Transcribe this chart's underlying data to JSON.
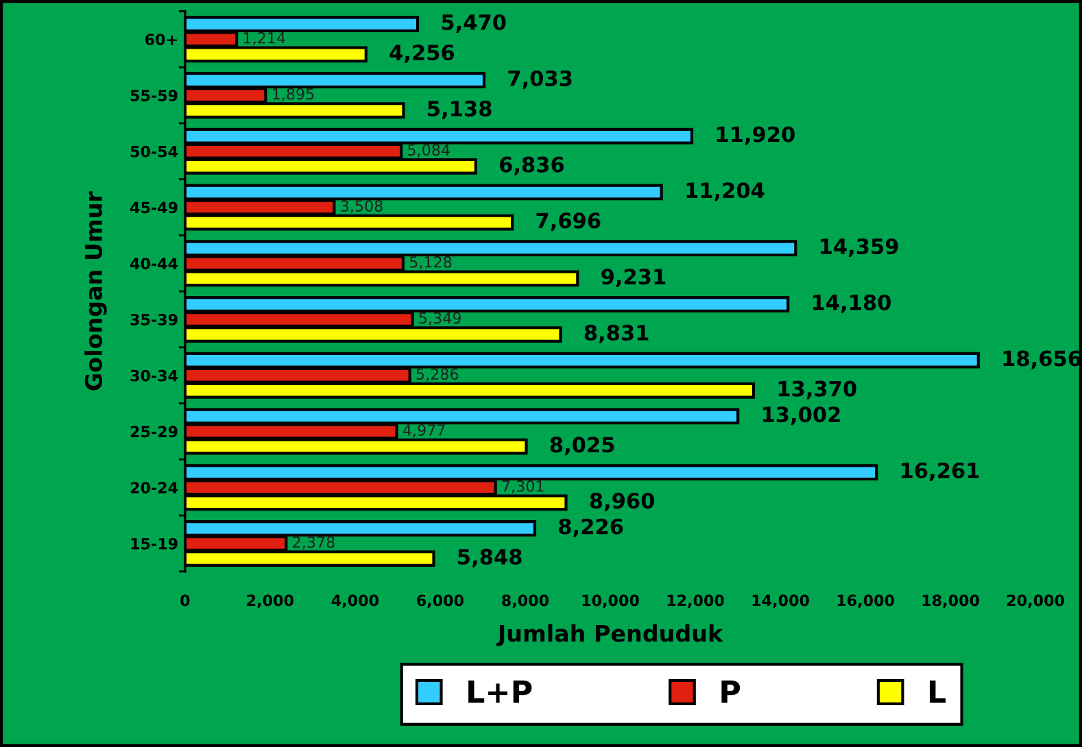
{
  "chart_data": {
    "type": "bar",
    "orientation": "horizontal",
    "xlabel": "Jumlah Penduduk",
    "ylabel": "Golongan Umur",
    "categories": [
      "60+",
      "55-59",
      "50-54",
      "45-49",
      "40-44",
      "35-39",
      "30-34",
      "25-29",
      "20-24",
      "15-19"
    ],
    "series": [
      {
        "name": "L+P",
        "color": "#33ccff",
        "values": [
          5470,
          7033,
          11920,
          11204,
          14359,
          14180,
          18656,
          13002,
          16261,
          8226
        ],
        "value_labels": [
          "5,470",
          "7,033",
          "11,920",
          "11,204",
          "14,359",
          "14,180",
          "18,656",
          "13,002",
          "16,261",
          "8,226"
        ]
      },
      {
        "name": "P",
        "color": "#e02010",
        "values": [
          1214,
          1895,
          5084,
          3508,
          5128,
          5349,
          5286,
          4977,
          7301,
          2378
        ],
        "value_labels": [
          "1,214",
          "1,895",
          "5,084",
          "3,508",
          "5,128",
          "5,349",
          "5,286",
          "4,977",
          "7,301",
          "2,378"
        ]
      },
      {
        "name": "L",
        "color": "#ffff00",
        "values": [
          4256,
          5138,
          6836,
          7696,
          9231,
          8831,
          13370,
          8025,
          8960,
          5848
        ],
        "value_labels": [
          "4,256",
          "5,138",
          "6,836",
          "7,696",
          "9,231",
          "8,831",
          "13,370",
          "8,025",
          "8,960",
          "5,848"
        ]
      }
    ],
    "xlim": [
      0,
      20000
    ],
    "xticks": [
      0,
      {
        "value": 2000,
        "label": "2,000"
      },
      {
        "value": 4000,
        "label": "4,000"
      },
      {
        "value": 6000,
        "label": "6,000"
      },
      {
        "value": 8000,
        "label": "8,000"
      },
      {
        "value": 10000,
        "label": "10,000"
      },
      {
        "value": 12000,
        "label": "12,000"
      },
      {
        "value": 14000,
        "label": "14,000"
      },
      {
        "value": 16000,
        "label": "16,000"
      },
      {
        "value": 18000,
        "label": "18,000"
      },
      {
        "value": 20000,
        "label": "20,000"
      }
    ],
    "grid": false,
    "legend": "bottom"
  }
}
